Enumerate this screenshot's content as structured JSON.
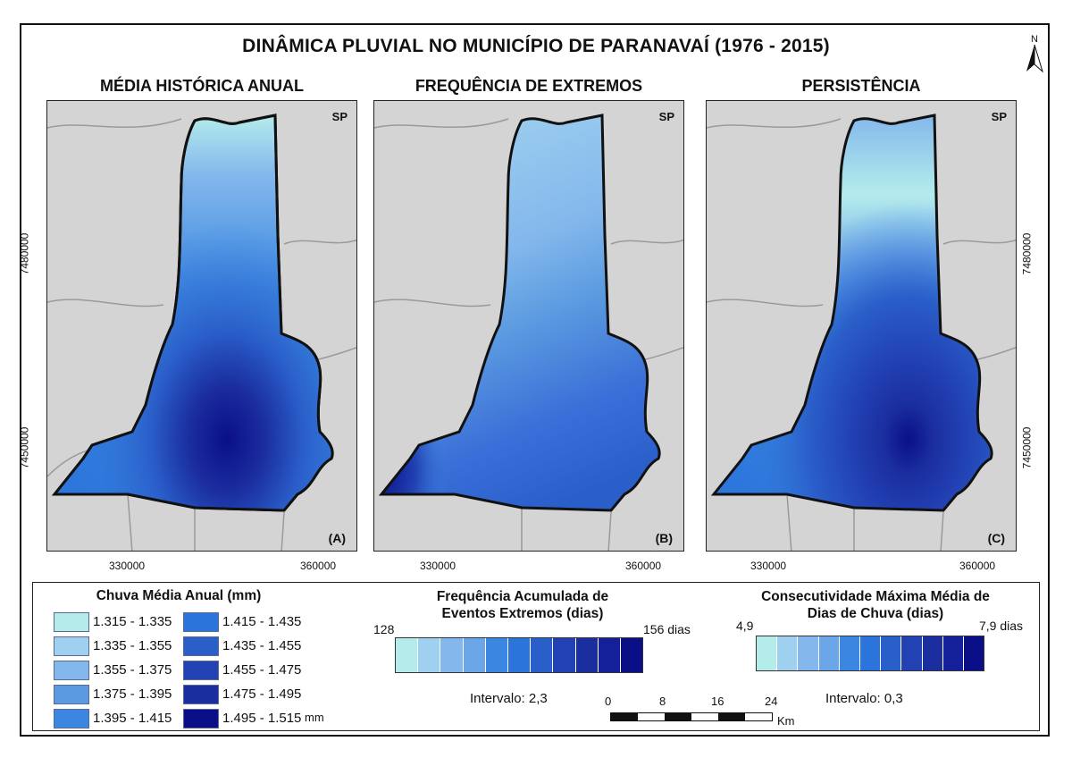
{
  "title": "DINÂMICA PLUVIAL NO MUNICÍPIO DE PARANAVAÍ (1976 - 2015)",
  "north_label": "N",
  "state_label": "SP",
  "panels": [
    {
      "title": "MÉDIA HISTÓRICA ANUAL",
      "tag": "(A)"
    },
    {
      "title": "FREQUÊNCIA DE EXTREMOS",
      "tag": "(B)"
    },
    {
      "title": "PERSISTÊNCIA",
      "tag": "(C)"
    }
  ],
  "x_ticks": [
    "330000",
    "360000"
  ],
  "y_ticks": [
    "7480000",
    "7450000"
  ],
  "legend_mean": {
    "title": "Chuva Média Anual (mm)",
    "unit": "mm",
    "classes": [
      {
        "label": "1.315 - 1.335",
        "color": "#b4ecec"
      },
      {
        "label": "1.335 - 1.355",
        "color": "#9fd0ef"
      },
      {
        "label": "1.355 - 1.375",
        "color": "#84b8ec"
      },
      {
        "label": "1.375 - 1.395",
        "color": "#5a9ae0"
      },
      {
        "label": "1.395 - 1.415",
        "color": "#3a86e0"
      },
      {
        "label": "1.415 - 1.435",
        "color": "#2a74dc"
      },
      {
        "label": "1.435 - 1.455",
        "color": "#2a5ec9"
      },
      {
        "label": "1.455 - 1.475",
        "color": "#2242b4"
      },
      {
        "label": "1.475 - 1.495",
        "color": "#1b2ea0"
      },
      {
        "label": "1.495 - 1.515",
        "color": "#0a0f88"
      }
    ]
  },
  "legend_extremes": {
    "title_line1": "Frequência Acumulada de",
    "title_line2": "Eventos Extremos (dias)",
    "min": "128",
    "max": "156 dias",
    "interval": "Intervalo: 2,3",
    "colors": [
      "#b4ecec",
      "#9fd0ef",
      "#84b8ec",
      "#6aa6e8",
      "#3a86e0",
      "#2a74dc",
      "#2a5ec9",
      "#2242b4",
      "#1b2ea0",
      "#14209a",
      "#0a0f88"
    ]
  },
  "legend_persistence": {
    "title_line1": "Consecutividade Máxima Média de",
    "title_line2": "Dias de Chuva (dias)",
    "min": "4,9",
    "max": "7,9 dias",
    "interval": "Intervalo: 0,3",
    "colors": [
      "#b4ecec",
      "#9fd0ef",
      "#84b8ec",
      "#6aa6e8",
      "#3a86e0",
      "#2a74dc",
      "#2a5ec9",
      "#2242b4",
      "#1b2ea0",
      "#14209a",
      "#0a0f88"
    ]
  },
  "scale_bar": {
    "ticks": [
      "0",
      "8",
      "16",
      "24"
    ],
    "unit": "Km"
  }
}
